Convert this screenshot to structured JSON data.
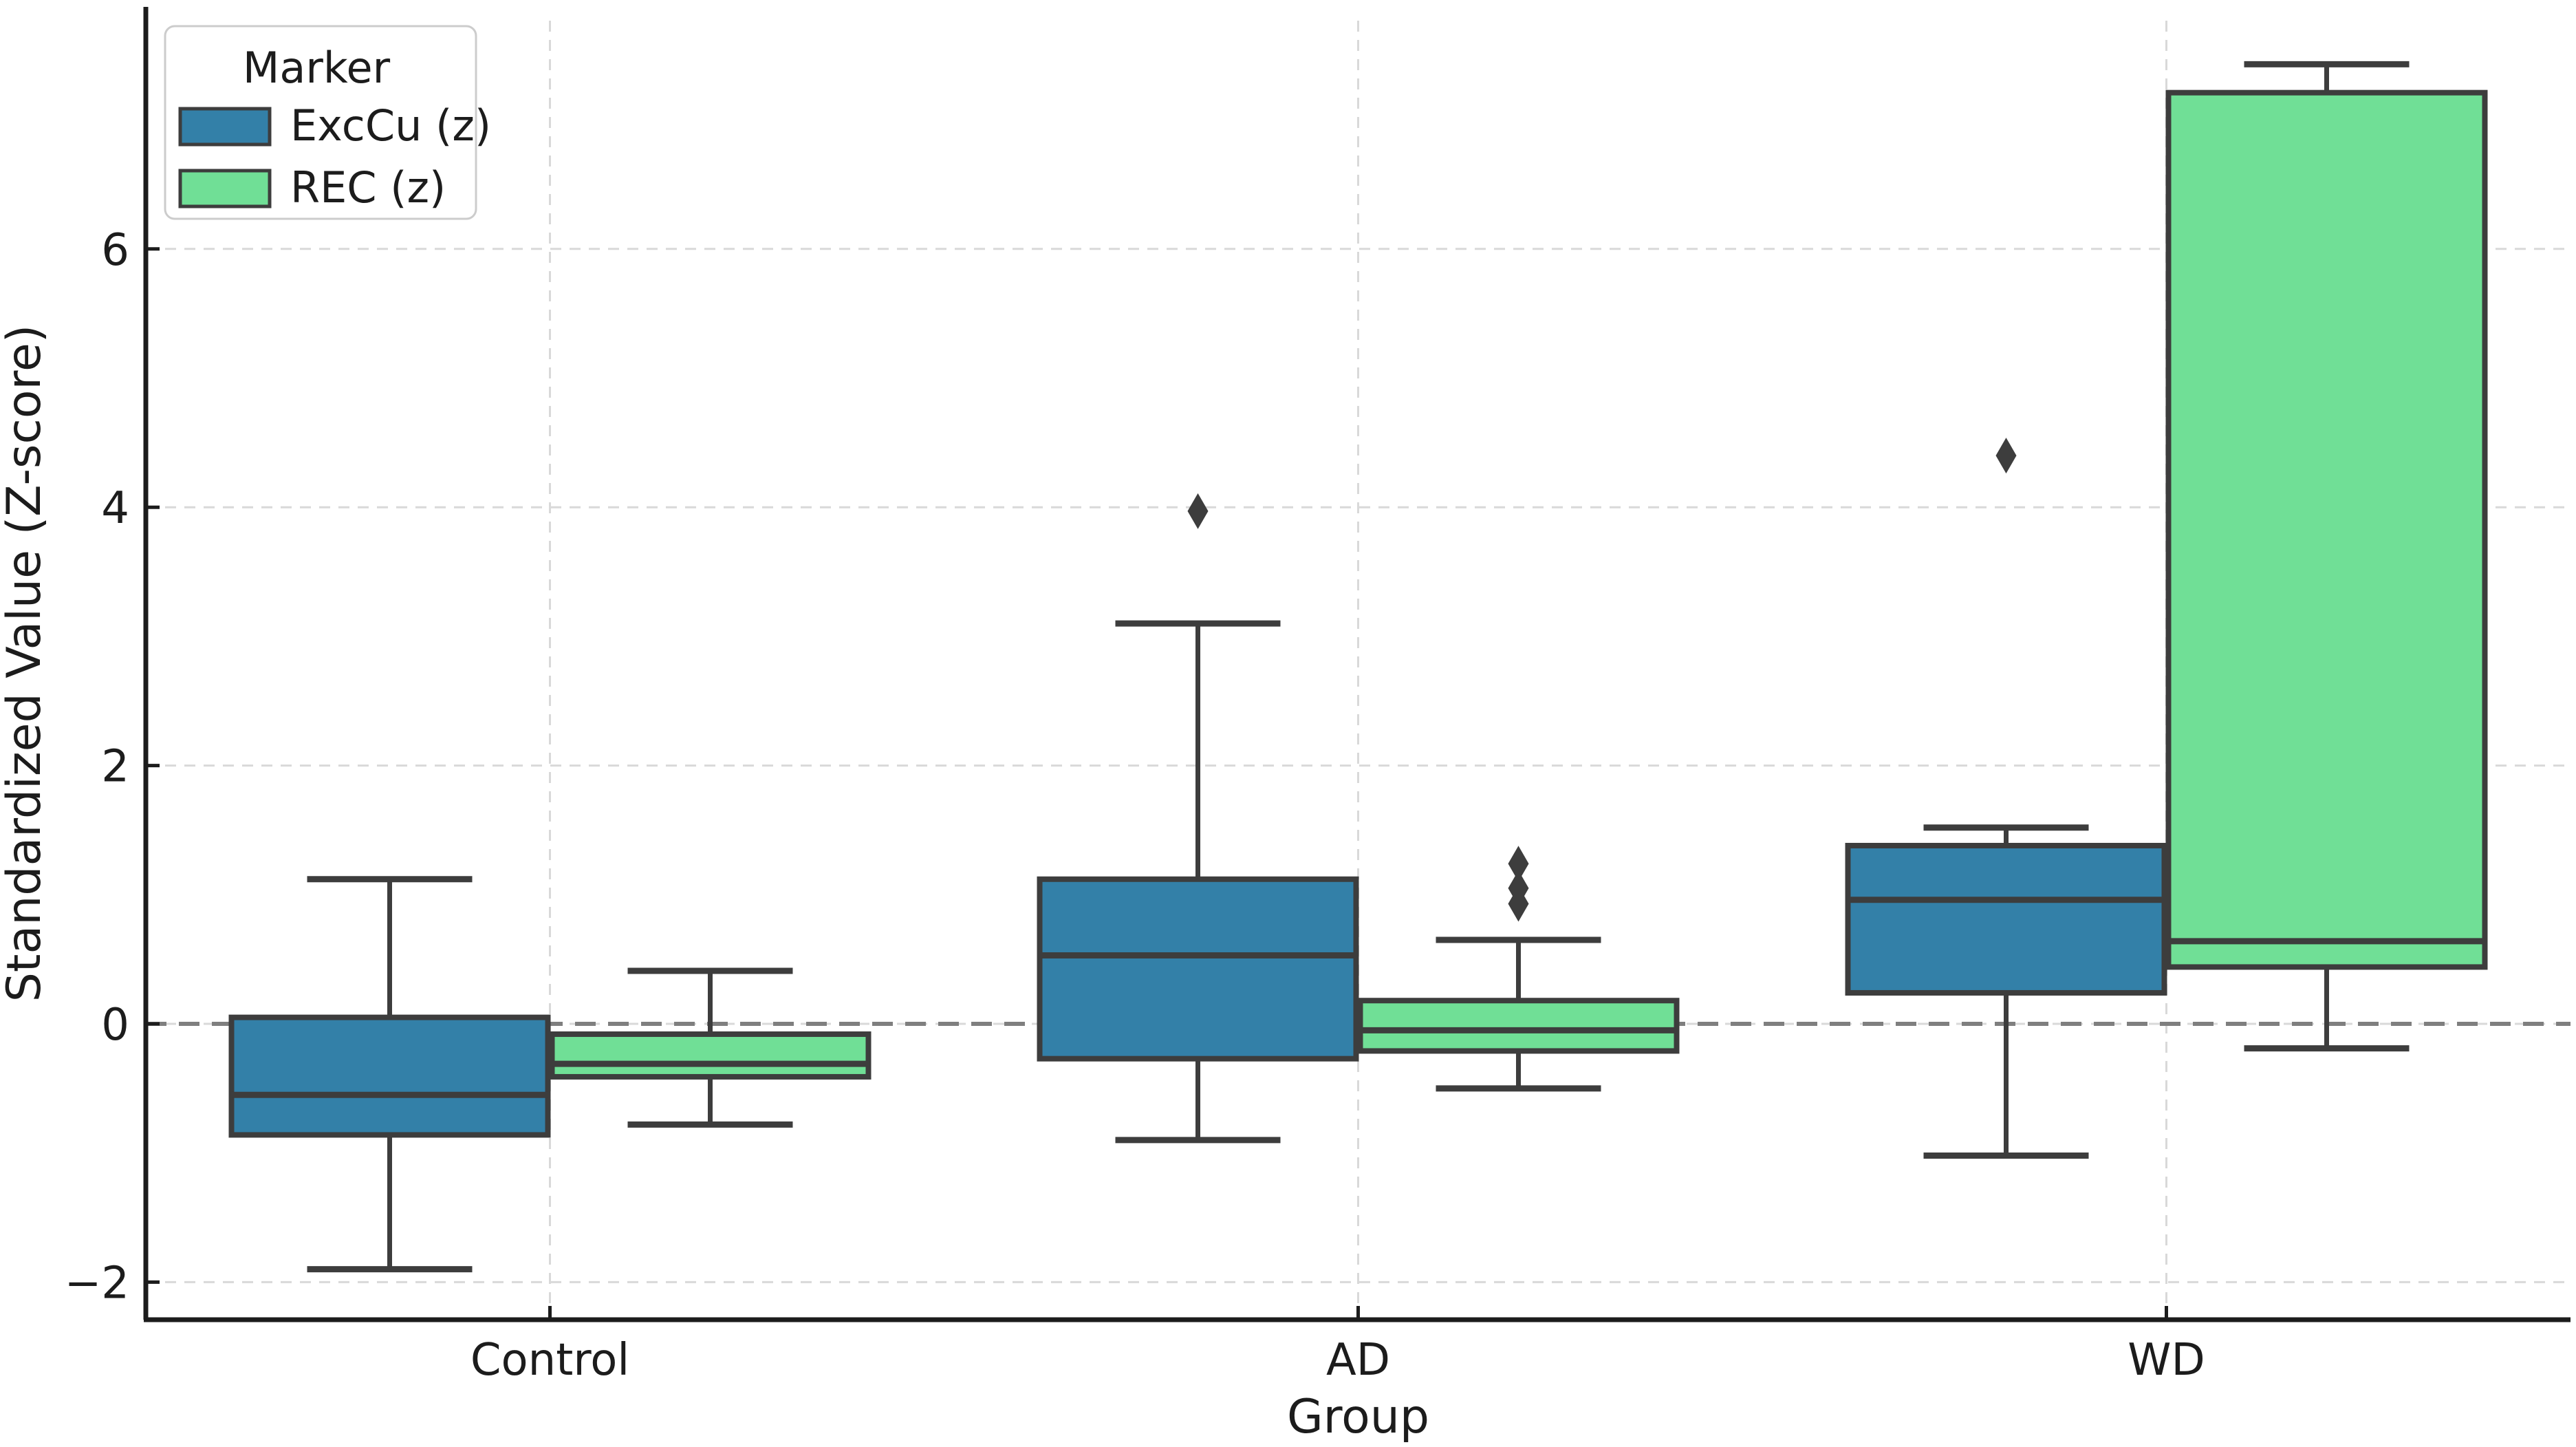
{
  "figure": {
    "background": "#FFFFFF"
  },
  "chart_data": {
    "type": "box",
    "variant": "grouped-boxplot-with-hue",
    "title": "",
    "xlabel": "Group",
    "ylabel": "Standardized Value (Z-score)",
    "categories": [
      "Control",
      "AD",
      "WD"
    ],
    "yticks": [
      -2,
      0,
      2,
      4,
      6
    ],
    "ylim": [
      -2.29,
      7.87
    ],
    "grid": {
      "visible": true,
      "style": "dashed",
      "color": "#D9D9D9",
      "horizontal_at_yticks": true,
      "vertical_at_categories": true
    },
    "reference_line": {
      "y": 0,
      "style": "dashed",
      "color": "#7F7F7F"
    },
    "legend": {
      "title": "Marker",
      "position": "upper left",
      "entries": [
        {
          "label": "ExcCu (z)",
          "color": "#3380A8"
        },
        {
          "label": "REC (z)",
          "color": "#70DF96"
        }
      ]
    },
    "series": [
      {
        "name": "ExcCu (z)",
        "color": "#3380A8",
        "boxes": [
          {
            "category": "Control",
            "whisker_low": -1.9,
            "q1": -0.86,
            "median": -0.55,
            "q3": 0.05,
            "whisker_high": 1.12,
            "outliers": []
          },
          {
            "category": "AD",
            "whisker_low": -0.9,
            "q1": -0.27,
            "median": 0.53,
            "q3": 1.12,
            "whisker_high": 3.1,
            "outliers": [
              3.97
            ]
          },
          {
            "category": "WD",
            "whisker_low": -1.02,
            "q1": 0.24,
            "median": 0.96,
            "q3": 1.38,
            "whisker_high": 1.52,
            "outliers": [
              4.4
            ]
          }
        ]
      },
      {
        "name": "REC (z)",
        "color": "#70DF96",
        "boxes": [
          {
            "category": "Control",
            "whisker_low": -0.78,
            "q1": -0.41,
            "median": -0.31,
            "q3": -0.08,
            "whisker_high": 0.41,
            "outliers": []
          },
          {
            "category": "AD",
            "whisker_low": -0.5,
            "q1": -0.21,
            "median": -0.05,
            "q3": 0.18,
            "whisker_high": 0.65,
            "outliers": [
              1.24,
              1.05,
              0.93
            ]
          },
          {
            "category": "WD",
            "whisker_low": -0.19,
            "q1": 0.44,
            "median": 0.64,
            "q3": 7.21,
            "whisker_high": 7.43,
            "outliers": []
          }
        ]
      }
    ],
    "style": {
      "box_edge": "#3D3D3D",
      "median_color": "#3D3D3D",
      "whisker_color": "#3D3D3D",
      "flier_color": "#3D3D3D",
      "spine_color": "#1C1C1C",
      "tick_color": "#1C1C1C",
      "text_color": "#1C1C1C",
      "legend_border": "#CCCCCC",
      "legend_background": "#FFFFFF"
    }
  }
}
